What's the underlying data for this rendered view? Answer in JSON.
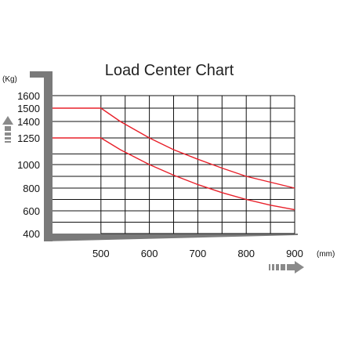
{
  "chart_data": {
    "type": "line",
    "title": "Load Center Chart",
    "y_unit": "(Kg)",
    "x_unit": "(mm)",
    "x_tick_labels": [
      "500",
      "600",
      "700",
      "800",
      "900"
    ],
    "y_tick_labels": [
      "1600",
      "1500",
      "1400",
      "1250",
      "1000",
      "800",
      "600",
      "400"
    ],
    "xlim": [
      400,
      900
    ],
    "ylim": [
      400,
      1600
    ],
    "grid": true,
    "grid_x": [
      500,
      550,
      600,
      650,
      700,
      750,
      800,
      850,
      900
    ],
    "grid_y": [
      400,
      500,
      600,
      700,
      800,
      900,
      1000,
      1100,
      1250,
      1400,
      1500,
      1600
    ],
    "series": [
      {
        "x": [
          400,
          500,
          540,
          600,
          650,
          700,
          750,
          800,
          850,
          900
        ],
        "values": [
          1500,
          1500,
          1400,
          1250,
          1140,
          1050,
          970,
          900,
          850,
          800
        ]
      },
      {
        "x": [
          400,
          500,
          540,
          600,
          650,
          700,
          750,
          800,
          850,
          900
        ],
        "values": [
          1250,
          1250,
          1140,
          1000,
          910,
          830,
          760,
          700,
          650,
          610
        ]
      }
    ],
    "colors": {
      "series": "#e8202a",
      "axis_bar": "#7a7a7a",
      "grid": "#111111",
      "arrow": "#8a8a8a"
    }
  }
}
